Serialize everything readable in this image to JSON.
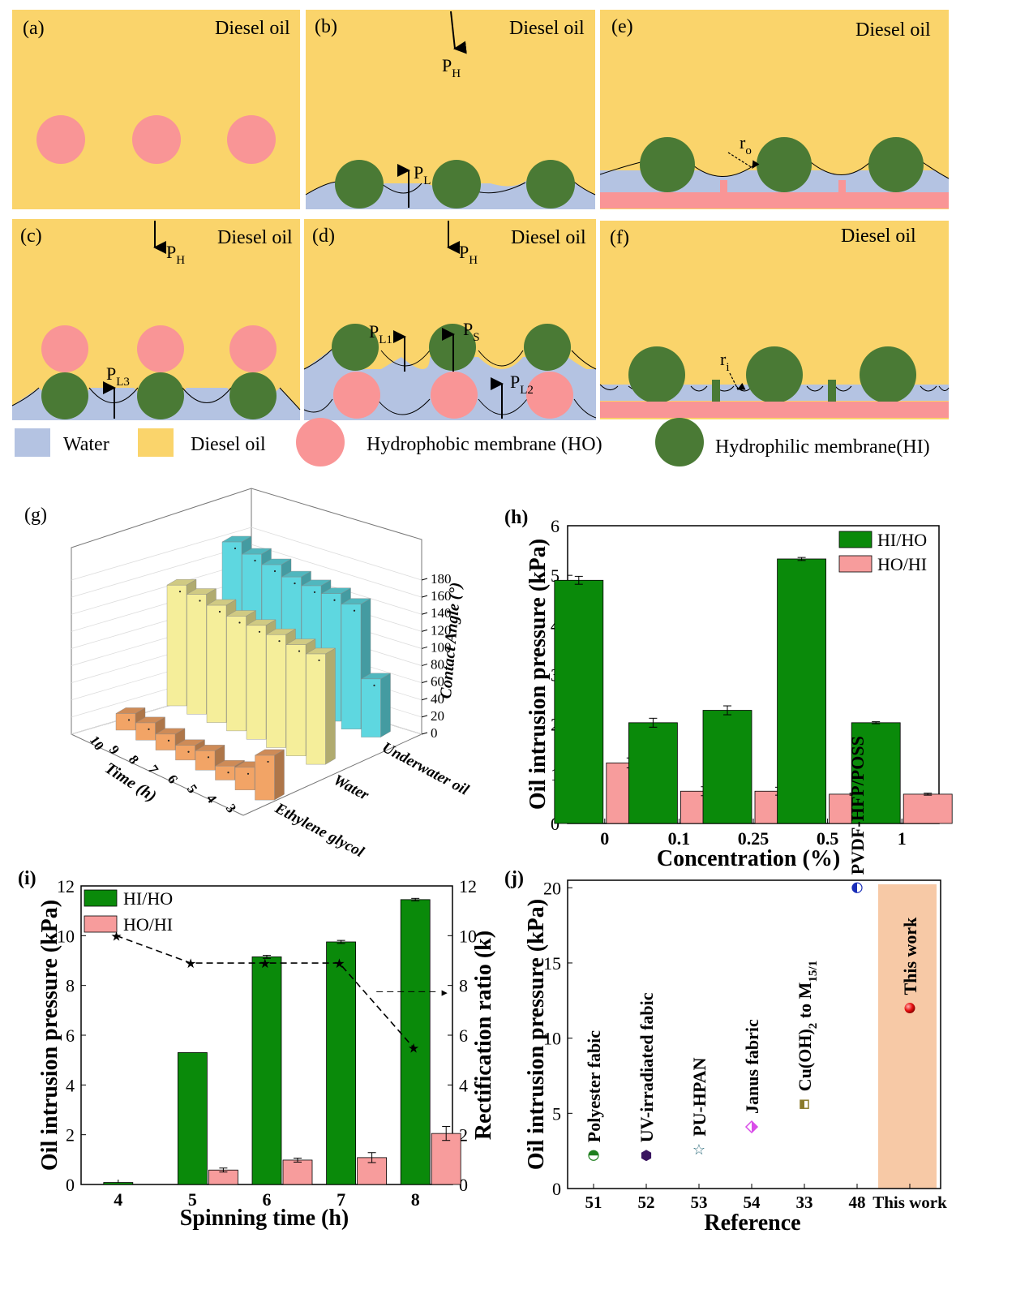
{
  "colors": {
    "diesel": "#FAD46B",
    "water": "#B4C3E2",
    "hydrophobic": "#F99596",
    "hydrophilic": "#4A7A35",
    "bar_hi": "#0A8A0A",
    "bar_ho": "#F79C9C",
    "g_cyan": "#5ED7E0",
    "g_yellow": "#F5EE9A",
    "g_orange": "#F2A466",
    "j_band": "#F7C9A6"
  },
  "schematic": {
    "panels": {
      "a": {
        "tag": "(a)",
        "medium": "Diesel oil"
      },
      "b": {
        "tag": "(b)",
        "medium": "Diesel oil",
        "arrow_top": "P",
        "arrow_top_sub": "H",
        "arrow_up": "P",
        "arrow_up_sub": "L"
      },
      "c": {
        "tag": "(c)",
        "medium": "Diesel oil",
        "arrow_top": "P",
        "arrow_top_sub": "H",
        "arrow_up": "P",
        "arrow_up_sub": "L3"
      },
      "d": {
        "tag": "(d)",
        "medium": "Diesel oil",
        "arrow_top": "P",
        "arrow_top_sub": "H",
        "arrow_l1": "P",
        "arrow_l1_sub": "L1",
        "arrow_s": "P",
        "arrow_s_sub": "S",
        "arrow_l2": "P",
        "arrow_l2_sub": "L2"
      },
      "e": {
        "tag": "(e)",
        "medium": "Diesel oil",
        "radius": "r",
        "radius_sub": "o"
      },
      "f": {
        "tag": "(f)",
        "medium": "Diesel oil",
        "radius": "r",
        "radius_sub": "i"
      }
    },
    "legend": {
      "water": "Water",
      "diesel": "Diesel oil",
      "hydrophobic": "Hydrophobic membrane (HO)",
      "hydrophilic": "Hydrophilic membrane(HI)"
    }
  },
  "chart_data": [
    {
      "panel": "(g)",
      "type": "bar3d",
      "zlabel": "Contact Angle (°)",
      "xlabel": "Time (h)",
      "time_ticks": [
        "10",
        "9",
        "8",
        "7",
        "6",
        "5",
        "4",
        "3"
      ],
      "z_ticks": [
        "0",
        "20",
        "40",
        "60",
        "80",
        "100",
        "120",
        "140",
        "160",
        "180"
      ],
      "zlim": [
        0,
        180
      ],
      "series": [
        {
          "name": "Underwater oil",
          "color_key": "g_cyan",
          "values": [
            163,
            158,
            155,
            150,
            149,
            149,
            146,
            68
          ]
        },
        {
          "name": "Water",
          "color_key": "g_yellow",
          "values": [
            141,
            140,
            137,
            134,
            133,
            132,
            130,
            129
          ]
        },
        {
          "name": "Ethylene glycol",
          "color_key": "g_orange",
          "values": [
            25,
            26,
            24,
            22,
            29,
            21,
            34,
            67
          ]
        }
      ]
    },
    {
      "panel": "(h)",
      "type": "bar",
      "xlabel": "Concentration (%)",
      "ylabel": "Oil intrusion pressure (kPa)",
      "categories": [
        "0",
        "0.1",
        "0.25",
        "0.5",
        "1"
      ],
      "y_ticks": [
        "0",
        "1",
        "2",
        "3",
        "4",
        "5",
        "6"
      ],
      "ylim": [
        0,
        6
      ],
      "legend_position": "top-right",
      "series": [
        {
          "name": "HI/HO",
          "values": [
            4.9,
            2.03,
            2.28,
            5.33,
            2.03
          ],
          "errors": [
            0.08,
            0.09,
            0.09,
            0.03,
            0.02
          ]
        },
        {
          "name": "HO/HI",
          "values": [
            1.22,
            0.65,
            0.65,
            0.59,
            0.59
          ],
          "errors": [
            0.1,
            0.09,
            0.08,
            0.02,
            0.02
          ]
        }
      ]
    },
    {
      "panel": "(i)",
      "type": "bar+line",
      "xlabel": "Spinning time (h)",
      "ylabel": "Oil intrusion pressure (kPa)",
      "y2label": "Rectification ratio (k)",
      "categories": [
        "4",
        "5",
        "6",
        "7",
        "8"
      ],
      "y_ticks": [
        "0",
        "2",
        "4",
        "6",
        "8",
        "10",
        "12"
      ],
      "y2_ticks": [
        "0",
        "2",
        "4",
        "6",
        "8",
        "10",
        "12"
      ],
      "ylim": [
        0,
        12
      ],
      "y2lim": [
        0,
        12
      ],
      "legend_position": "top-left",
      "series": [
        {
          "name": "HI/HO",
          "values": [
            0.08,
            5.3,
            9.15,
            9.75,
            11.45
          ],
          "errors": [
            0,
            0,
            0.06,
            0.06,
            0.05
          ]
        },
        {
          "name": "HO/HI",
          "values": [
            0,
            0.58,
            0.98,
            1.08,
            2.05
          ],
          "errors": [
            0,
            0.08,
            0.08,
            0.2,
            0.28
          ]
        }
      ],
      "ratio_line": {
        "x": [
          4.5,
          5.5,
          6.5,
          7.5,
          8.5
        ],
        "values": [
          10.0,
          8.9,
          8.9,
          8.9,
          5.5
        ]
      }
    },
    {
      "panel": "(j)",
      "type": "scatter",
      "xlabel": "Reference",
      "ylabel": "Oil intrusion pressure (kPa)",
      "categories": [
        "51",
        "52",
        "53",
        "54",
        "33",
        "48",
        "This work"
      ],
      "y_ticks": [
        "0",
        "5",
        "10",
        "15",
        "20"
      ],
      "ylim": [
        0,
        20.5
      ],
      "points": [
        {
          "ref": "51",
          "label": "Polyester fabic",
          "value": 2.2,
          "marker": "half-circle",
          "color": "#1E7F1E"
        },
        {
          "ref": "52",
          "label": "UV-irradiated fabic",
          "value": 2.2,
          "marker": "hexagon",
          "color": "#3A1560"
        },
        {
          "ref": "53",
          "label": "PU-HPAN",
          "value": 2.6,
          "marker": "star",
          "color": "#2A6A7A"
        },
        {
          "ref": "54",
          "label": "Janus fabric",
          "value": 4.1,
          "marker": "diamond",
          "color": "#D94DE8"
        },
        {
          "ref": "33",
          "label": "Cu(OH)",
          "label_sub": "2",
          "label_rest": " to M",
          "label_sub2": "15/1",
          "value": 5.6,
          "marker": "square",
          "color": "#8A7A2A"
        },
        {
          "ref": "48",
          "label": "PVDF-HFP/POSS",
          "value": 20,
          "marker": "half-circle-blue",
          "color": "#1A2EB8"
        },
        {
          "ref": "This work",
          "label": "This work",
          "value": 12,
          "marker": "circle",
          "color": "#E01010"
        }
      ]
    }
  ]
}
